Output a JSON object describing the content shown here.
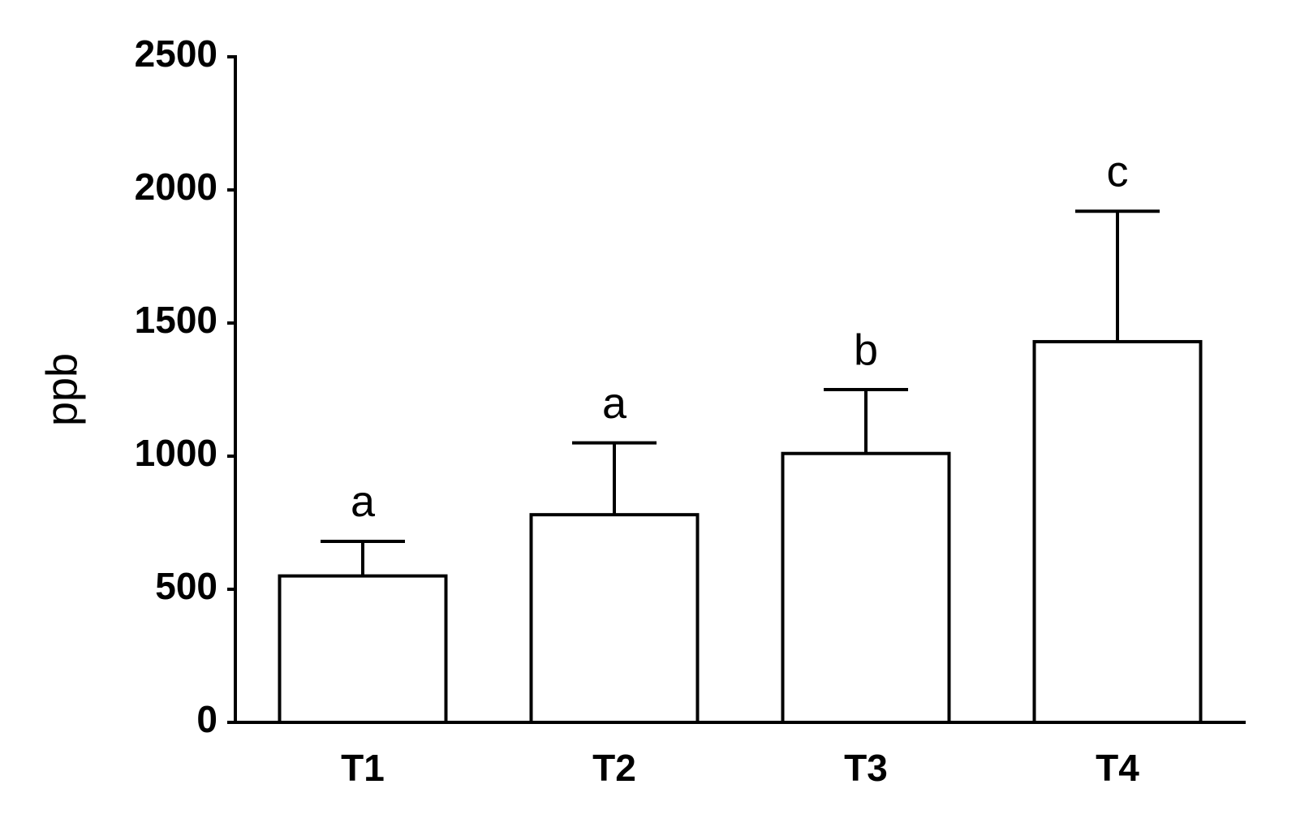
{
  "chart_data": {
    "type": "bar",
    "y_label": "ppb",
    "categories": [
      "T1",
      "T2",
      "T3",
      "T4"
    ],
    "values": [
      550,
      780,
      1010,
      1430
    ],
    "errors": [
      130,
      270,
      240,
      490
    ],
    "group_labels": [
      "a",
      "a",
      "b",
      "c"
    ],
    "color": "#ffffff",
    "ylim": [
      0,
      2500
    ],
    "yticks": [
      0,
      500,
      1000,
      1500,
      2000,
      2500
    ],
    "grid": false
  }
}
